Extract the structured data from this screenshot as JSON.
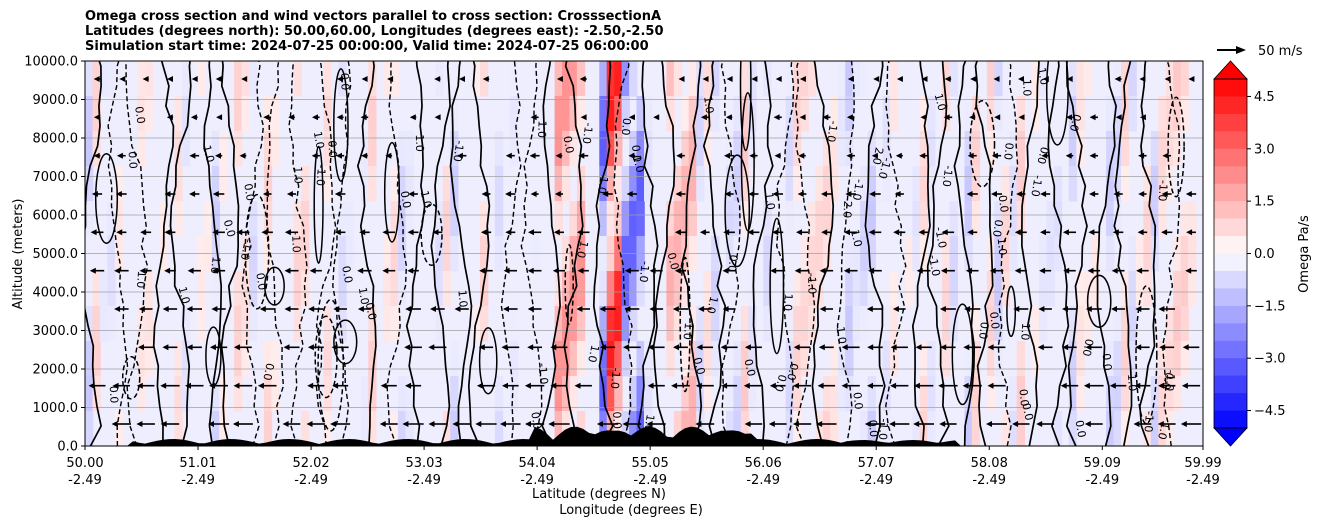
{
  "chart_data": {
    "type": "contour",
    "title_lines": [
      "Omega cross section and wind vectors parallel to cross section: CrosssectionA",
      "Latitudes (degrees north): 50.00,60.00, Longitudes (degrees east): -2.50,-2.50",
      "Simulation start time: 2024-07-25 00:00:00, Valid time: 2024-07-25 06:00:00"
    ],
    "ylabel": "Altitude (meters)",
    "xlabel_lat": "Latitude (degrees N)",
    "xlabel_lon": "Longitude (degrees E)",
    "x_ticks": [
      {
        "lat": "50.00",
        "lon": "-2.49"
      },
      {
        "lat": "51.01",
        "lon": "-2.49"
      },
      {
        "lat": "52.02",
        "lon": "-2.49"
      },
      {
        "lat": "53.03",
        "lon": "-2.49"
      },
      {
        "lat": "54.04",
        "lon": "-2.49"
      },
      {
        "lat": "55.05",
        "lon": "-2.49"
      },
      {
        "lat": "56.06",
        "lon": "-2.49"
      },
      {
        "lat": "57.07",
        "lon": "-2.49"
      },
      {
        "lat": "58.08",
        "lon": "-2.49"
      },
      {
        "lat": "59.09",
        "lon": "-2.49"
      },
      {
        "lat": "59.99",
        "lon": "-2.49"
      }
    ],
    "xlim": [
      50.0,
      59.99
    ],
    "ylim": [
      0,
      10000
    ],
    "y_ticks": [
      "0.0",
      "1000.0",
      "2000.0",
      "3000.0",
      "4000.0",
      "5000.0",
      "6000.0",
      "7000.0",
      "8000.0",
      "9000.0",
      "10000.0"
    ],
    "grid": true,
    "colorbar": {
      "label": "Omega Pa/s",
      "range": [
        -5,
        5
      ],
      "ticks": [
        "4.5",
        "3.0",
        "1.5",
        "0.0",
        "−1.5",
        "−3.0",
        "−4.5"
      ],
      "tick_values": [
        4.5,
        3.0,
        1.5,
        0.0,
        -1.5,
        -3.0,
        -4.5
      ],
      "extend": "both",
      "colors_positive": "#ff0000",
      "colors_negative": "#0000ff"
    },
    "quiver_key": "50 m/s",
    "contour_labels": [
      "0.0",
      "1.0",
      "-1.0",
      "2.0"
    ]
  }
}
